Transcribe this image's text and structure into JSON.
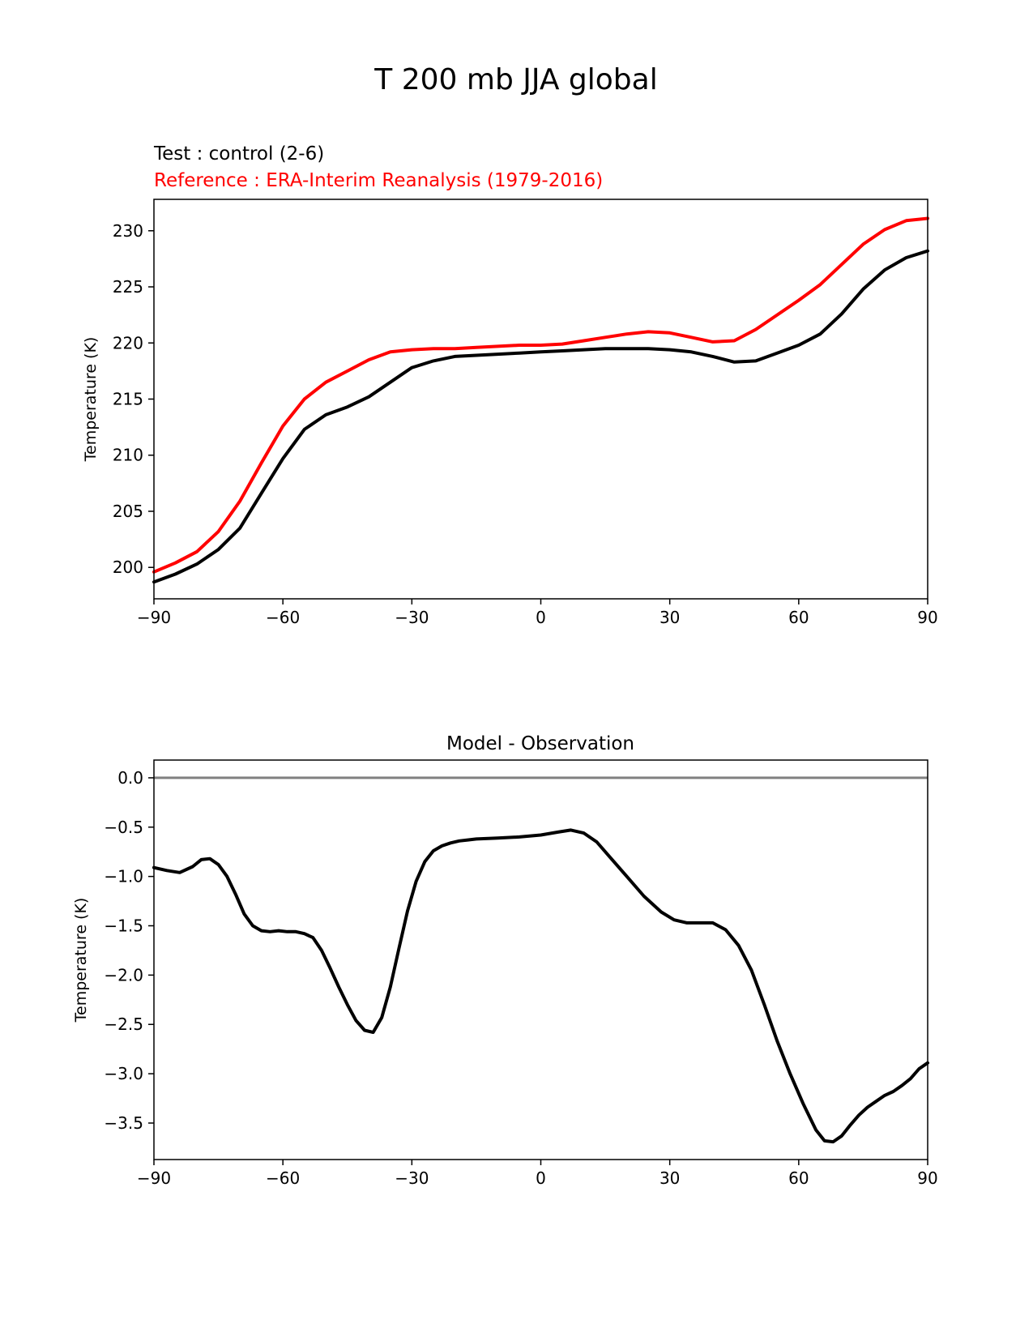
{
  "figure": {
    "title": "T 200 mb JJA global"
  },
  "chart_data": [
    {
      "type": "line",
      "title": "",
      "test_label": "Test : control (2-6)",
      "reference_label": "Reference : ERA-Interim Reanalysis (1979-2016)",
      "xlabel": "",
      "ylabel": "Temperature (K)",
      "xlim": [
        -90,
        90
      ],
      "ylim": [
        197.2,
        232.8
      ],
      "xticks": [
        -90,
        -60,
        -30,
        0,
        30,
        60,
        90
      ],
      "xtick_labels": [
        "−90",
        "−60",
        "−30",
        "0",
        "30",
        "60",
        "90"
      ],
      "yticks": [
        200,
        205,
        210,
        215,
        220,
        225,
        230
      ],
      "ytick_labels": [
        "200",
        "205",
        "210",
        "215",
        "220",
        "225",
        "230"
      ],
      "series": [
        {
          "name": "Reference : ERA-Interim Reanalysis (1979-2016)",
          "color": "#ff0000",
          "x": [
            -90,
            -85,
            -80,
            -75,
            -70,
            -65,
            -60,
            -55,
            -50,
            -45,
            -40,
            -35,
            -30,
            -25,
            -20,
            -15,
            -10,
            -5,
            0,
            5,
            10,
            15,
            20,
            25,
            30,
            35,
            40,
            45,
            50,
            55,
            60,
            65,
            70,
            75,
            80,
            85,
            90
          ],
          "y": [
            199.6,
            200.4,
            201.4,
            203.2,
            205.9,
            209.3,
            212.6,
            215.0,
            216.5,
            217.5,
            218.5,
            219.2,
            219.4,
            219.5,
            219.5,
            219.6,
            219.7,
            219.8,
            219.8,
            219.9,
            220.2,
            220.5,
            220.8,
            221.0,
            220.9,
            220.5,
            220.1,
            220.2,
            221.2,
            222.5,
            223.8,
            225.2,
            227.0,
            228.8,
            230.1,
            230.9,
            231.1
          ]
        },
        {
          "name": "Test : control (2-6)",
          "color": "#000000",
          "x": [
            -90,
            -85,
            -80,
            -75,
            -70,
            -65,
            -60,
            -55,
            -50,
            -45,
            -40,
            -35,
            -30,
            -25,
            -20,
            -15,
            -10,
            -5,
            0,
            5,
            10,
            15,
            20,
            25,
            30,
            35,
            40,
            45,
            50,
            55,
            60,
            65,
            70,
            75,
            80,
            85,
            90
          ],
          "y": [
            198.7,
            199.4,
            200.3,
            201.6,
            203.5,
            206.6,
            209.7,
            212.3,
            213.6,
            214.3,
            215.2,
            216.5,
            217.8,
            218.4,
            218.8,
            218.9,
            219.0,
            219.1,
            219.2,
            219.3,
            219.4,
            219.5,
            219.5,
            219.5,
            219.4,
            219.2,
            218.8,
            218.3,
            218.4,
            219.1,
            219.8,
            220.8,
            222.6,
            224.8,
            226.5,
            227.6,
            228.2
          ]
        }
      ]
    },
    {
      "type": "line",
      "title": "Model - Observation",
      "xlabel": "",
      "ylabel": "Temperature (K)",
      "xlim": [
        -90,
        90
      ],
      "ylim": [
        -3.87,
        0.18
      ],
      "xticks": [
        -90,
        -60,
        -30,
        0,
        30,
        60,
        90
      ],
      "xtick_labels": [
        "−90",
        "−60",
        "−30",
        "0",
        "30",
        "60",
        "90"
      ],
      "yticks": [
        0.0,
        -0.5,
        -1.0,
        -1.5,
        -2.0,
        -2.5,
        -3.0,
        -3.5
      ],
      "ytick_labels": [
        "0.0",
        "−0.5",
        "−1.0",
        "−1.5",
        "−2.0",
        "−2.5",
        "−3.0",
        "−3.5"
      ],
      "zero_line": {
        "y": 0.0,
        "color": "#808080"
      },
      "series": [
        {
          "name": "Model - Observation",
          "color": "#000000",
          "x": [
            -90,
            -87,
            -84,
            -81,
            -79,
            -77,
            -75,
            -73,
            -71,
            -69,
            -67,
            -65,
            -63,
            -61,
            -59,
            -57,
            -55,
            -53,
            -51,
            -49,
            -47,
            -45,
            -43,
            -41,
            -39,
            -37,
            -35,
            -33,
            -31,
            -29,
            -27,
            -25,
            -23,
            -21,
            -19,
            -17,
            -15,
            -10,
            -5,
            0,
            4,
            7,
            10,
            13,
            16,
            20,
            24,
            28,
            31,
            34,
            37,
            40,
            43,
            46,
            49,
            52,
            55,
            58,
            61,
            64,
            66,
            68,
            70,
            72,
            74,
            76,
            78,
            80,
            82,
            84,
            86,
            88,
            90
          ],
          "y": [
            -0.91,
            -0.94,
            -0.96,
            -0.9,
            -0.83,
            -0.82,
            -0.88,
            -1.0,
            -1.18,
            -1.38,
            -1.5,
            -1.55,
            -1.56,
            -1.55,
            -1.56,
            -1.56,
            -1.58,
            -1.62,
            -1.75,
            -1.93,
            -2.12,
            -2.3,
            -2.46,
            -2.56,
            -2.58,
            -2.43,
            -2.12,
            -1.73,
            -1.35,
            -1.05,
            -0.85,
            -0.74,
            -0.69,
            -0.66,
            -0.64,
            -0.63,
            -0.62,
            -0.61,
            -0.6,
            -0.58,
            -0.55,
            -0.53,
            -0.56,
            -0.65,
            -0.8,
            -1.0,
            -1.2,
            -1.36,
            -1.44,
            -1.47,
            -1.47,
            -1.47,
            -1.54,
            -1.7,
            -1.95,
            -2.3,
            -2.67,
            -3.0,
            -3.3,
            -3.57,
            -3.68,
            -3.69,
            -3.63,
            -3.52,
            -3.42,
            -3.34,
            -3.28,
            -3.22,
            -3.18,
            -3.12,
            -3.05,
            -2.95,
            -2.89
          ]
        }
      ]
    }
  ]
}
